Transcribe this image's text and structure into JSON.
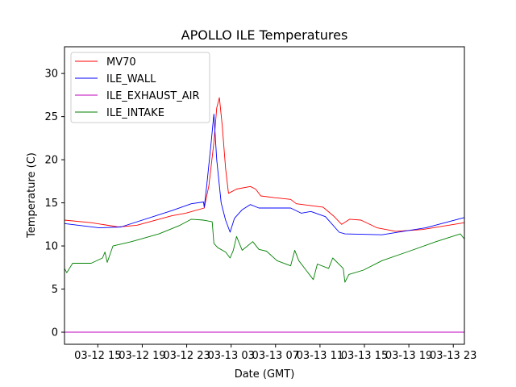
{
  "chart_data": {
    "type": "line",
    "title": "APOLLO ILE Temperatures",
    "xlabel": "Date (GMT)",
    "ylabel": "Temperature (C)",
    "x_units": "hours since 03-12 00:00 GMT",
    "xlim": [
      12,
      48
    ],
    "ylim": [
      -1.4,
      33.1
    ],
    "xticks": [
      15,
      19,
      23,
      27,
      31,
      35,
      39,
      43,
      47
    ],
    "xtick_labels": [
      "03-12 15",
      "03-12 19",
      "03-12 23",
      "03-13 03",
      "03-13 07",
      "03-13 11",
      "03-13 15",
      "03-13 19",
      "03-13 23"
    ],
    "yticks": [
      0,
      5,
      10,
      15,
      20,
      25,
      30
    ],
    "ytick_labels": [
      "0",
      "5",
      "10",
      "15",
      "20",
      "25",
      "30"
    ],
    "grid": false,
    "legend_position": "top-left",
    "series": [
      {
        "name": "MV70",
        "color": "#ff0000",
        "points": [
          [
            12,
            13.0
          ],
          [
            14.4,
            12.7
          ],
          [
            16.85,
            12.2
          ],
          [
            18.5,
            12.4
          ],
          [
            21.67,
            13.5
          ],
          [
            22.91,
            13.8
          ],
          [
            24.58,
            14.4
          ],
          [
            25.0,
            17.0
          ],
          [
            25.45,
            22.0
          ],
          [
            25.7,
            26.0
          ],
          [
            25.94,
            27.2
          ],
          [
            26.2,
            24.0
          ],
          [
            26.5,
            19.0
          ],
          [
            26.76,
            16.1
          ],
          [
            27.49,
            16.6
          ],
          [
            28.73,
            16.9
          ],
          [
            29.2,
            16.6
          ],
          [
            29.67,
            15.8
          ],
          [
            30.91,
            15.6
          ],
          [
            32.36,
            15.4
          ],
          [
            32.87,
            14.9
          ],
          [
            35.27,
            14.5
          ],
          [
            36.2,
            13.5
          ],
          [
            36.95,
            12.5
          ],
          [
            37.67,
            13.1
          ],
          [
            38.69,
            13.0
          ],
          [
            40.15,
            12.1
          ],
          [
            41.82,
            11.7
          ],
          [
            44.22,
            11.9
          ],
          [
            48,
            12.7
          ]
        ]
      },
      {
        "name": "ILE_WALL",
        "color": "#0000ff",
        "points": [
          [
            12,
            12.6
          ],
          [
            15.13,
            12.1
          ],
          [
            17.09,
            12.2
          ],
          [
            21.67,
            14.1
          ],
          [
            23.42,
            14.9
          ],
          [
            24.51,
            15.1
          ],
          [
            24.58,
            14.5
          ],
          [
            24.8,
            17.0
          ],
          [
            25.2,
            22.0
          ],
          [
            25.45,
            25.3
          ],
          [
            25.7,
            20.0
          ],
          [
            26.1,
            15.0
          ],
          [
            26.5,
            13.0
          ],
          [
            26.91,
            11.6
          ],
          [
            27.3,
            13.2
          ],
          [
            28.0,
            14.2
          ],
          [
            28.73,
            14.8
          ],
          [
            29.5,
            14.4
          ],
          [
            31.64,
            14.4
          ],
          [
            32.36,
            14.4
          ],
          [
            33.31,
            13.8
          ],
          [
            34.18,
            14.0
          ],
          [
            35.49,
            13.4
          ],
          [
            36.73,
            11.6
          ],
          [
            37.24,
            11.4
          ],
          [
            40.58,
            11.3
          ],
          [
            42.5,
            11.7
          ],
          [
            44.51,
            12.1
          ],
          [
            48,
            13.3
          ]
        ]
      },
      {
        "name": "ILE_EXHAUST_AIR",
        "color": "#bf00bf",
        "points": [
          [
            12,
            0
          ],
          [
            48,
            0
          ]
        ]
      },
      {
        "name": "ILE_INTAKE",
        "color": "#008000",
        "points": [
          [
            12,
            7.4
          ],
          [
            12.2,
            6.9
          ],
          [
            12.73,
            8.0
          ],
          [
            14.4,
            8.0
          ],
          [
            15.42,
            8.6
          ],
          [
            15.64,
            9.3
          ],
          [
            15.85,
            8.1
          ],
          [
            16.36,
            10.0
          ],
          [
            18.04,
            10.5
          ],
          [
            20.51,
            11.4
          ],
          [
            22.4,
            12.4
          ],
          [
            23.42,
            13.1
          ],
          [
            24.5,
            13.0
          ],
          [
            25.3,
            12.8
          ],
          [
            25.45,
            10.3
          ],
          [
            25.8,
            9.8
          ],
          [
            26.5,
            9.3
          ],
          [
            26.91,
            8.6
          ],
          [
            27.2,
            9.5
          ],
          [
            27.49,
            11.1
          ],
          [
            28.0,
            9.5
          ],
          [
            28.95,
            10.5
          ],
          [
            29.5,
            9.6
          ],
          [
            30.18,
            9.4
          ],
          [
            31.13,
            8.3
          ],
          [
            32.36,
            7.7
          ],
          [
            32.73,
            9.5
          ],
          [
            33.09,
            8.3
          ],
          [
            34.4,
            6.1
          ],
          [
            34.76,
            7.9
          ],
          [
            35.78,
            7.4
          ],
          [
            36.15,
            8.6
          ],
          [
            37.09,
            7.4
          ],
          [
            37.24,
            5.8
          ],
          [
            37.6,
            6.7
          ],
          [
            38.91,
            7.2
          ],
          [
            40.58,
            8.3
          ],
          [
            43.05,
            9.4
          ],
          [
            45.45,
            10.5
          ],
          [
            47.64,
            11.4
          ],
          [
            48,
            10.8
          ]
        ]
      }
    ]
  }
}
